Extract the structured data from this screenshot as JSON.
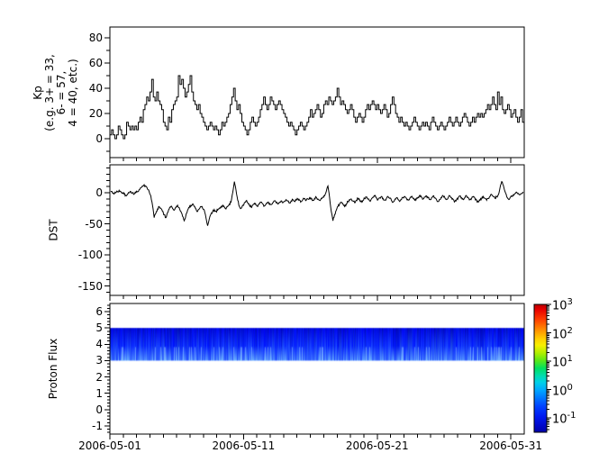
{
  "figure": {
    "background_color": "#ffffff",
    "line_color": "#000000",
    "title": ""
  },
  "x_axis": {
    "start_date": "2006-05-01",
    "end_date": "2006-06-01",
    "span_days": 31,
    "tick_days": [
      0,
      10,
      20,
      30
    ],
    "tick_labels": [
      "2006-05-01",
      "2006-05-11",
      "2006-05-21",
      "2006-05-31"
    ],
    "minor_tick_interval_days": 1
  },
  "panels": {
    "kp": {
      "ylabel_lines": [
        "Kp",
        "(e.g. 3+ = 33,",
        "6- = 57,",
        "4 = 40, etc.)"
      ],
      "yticks": [
        0,
        20,
        40,
        60,
        80
      ],
      "yminor_ticks": [
        -10,
        10,
        30,
        50,
        70
      ],
      "yrange": [
        -15,
        88.5
      ]
    },
    "dst": {
      "ylabel": "DST",
      "yticks": [
        0,
        -50,
        -100,
        -150
      ],
      "yminor_interval": 10,
      "yrange": [
        -165,
        45
      ]
    },
    "proton": {
      "ylabel": "Proton Flux",
      "yticks": [
        6,
        5,
        4,
        3,
        2,
        1,
        0,
        -1
      ],
      "yminor_interval": 0.2,
      "yrange": [
        -1.5,
        6.5
      ],
      "band": {
        "y_from": 3,
        "y_to": 5
      }
    }
  },
  "colorbar": {
    "scale": "log",
    "colormap": "jet",
    "top_exponent": 3,
    "decades_shown": 4.5,
    "tick_exponents": [
      3,
      2,
      1,
      0,
      -1
    ],
    "tick_labels_display": [
      "10^3",
      "10^2",
      "10^1",
      "10^0",
      "10^-1"
    ],
    "label_base": "10"
  },
  "chart_data": [
    {
      "type": "line",
      "name": "Kp index",
      "step": true,
      "ylabel": "Kp (e.g. 3+ = 33, 6- = 57, 4 = 40, etc.)",
      "x_start": "2006-05-01",
      "x_interval_hours": 3,
      "ylim": [
        -15,
        88.5
      ],
      "yticks": [
        0,
        20,
        40,
        60,
        80
      ],
      "xticks": [
        "2006-05-01",
        "2006-05-11",
        "2006-05-21",
        "2006-05-31"
      ],
      "values": [
        3,
        7,
        3,
        0,
        3,
        10,
        7,
        3,
        0,
        3,
        13,
        10,
        7,
        10,
        7,
        10,
        7,
        13,
        17,
        13,
        23,
        27,
        33,
        30,
        37,
        47,
        33,
        30,
        37,
        30,
        27,
        23,
        13,
        10,
        7,
        17,
        13,
        23,
        27,
        30,
        33,
        50,
        43,
        47,
        40,
        33,
        37,
        43,
        50,
        37,
        30,
        27,
        23,
        27,
        20,
        17,
        13,
        10,
        7,
        10,
        13,
        10,
        7,
        10,
        7,
        3,
        7,
        13,
        10,
        13,
        17,
        20,
        27,
        33,
        40,
        30,
        23,
        27,
        20,
        13,
        10,
        7,
        3,
        7,
        13,
        17,
        13,
        10,
        13,
        17,
        23,
        27,
        33,
        27,
        23,
        27,
        33,
        30,
        27,
        23,
        27,
        30,
        27,
        23,
        20,
        17,
        13,
        10,
        13,
        10,
        7,
        3,
        7,
        10,
        13,
        10,
        7,
        10,
        13,
        17,
        23,
        17,
        20,
        23,
        27,
        23,
        17,
        20,
        27,
        30,
        27,
        33,
        30,
        27,
        30,
        33,
        40,
        33,
        27,
        30,
        27,
        23,
        20,
        23,
        27,
        23,
        17,
        13,
        17,
        20,
        17,
        13,
        17,
        23,
        27,
        23,
        27,
        30,
        27,
        23,
        27,
        23,
        20,
        23,
        27,
        23,
        17,
        20,
        27,
        33,
        27,
        20,
        17,
        13,
        17,
        13,
        10,
        13,
        10,
        7,
        10,
        13,
        17,
        13,
        10,
        7,
        10,
        13,
        10,
        13,
        10,
        7,
        13,
        17,
        13,
        10,
        7,
        10,
        13,
        10,
        7,
        10,
        13,
        17,
        13,
        10,
        13,
        17,
        13,
        10,
        13,
        17,
        20,
        17,
        13,
        10,
        13,
        17,
        13,
        17,
        20,
        17,
        20,
        17,
        20,
        23,
        27,
        23,
        27,
        33,
        27,
        23,
        37,
        27,
        33,
        23,
        20,
        23,
        27,
        23,
        17,
        20,
        23,
        17,
        13,
        17,
        23,
        13
      ]
    },
    {
      "type": "line",
      "name": "DST",
      "step": false,
      "ylabel": "DST",
      "x_start": "2006-05-01",
      "x_interval_hours": 3,
      "ylim": [
        -165,
        45
      ],
      "yticks": [
        0,
        -50,
        -100,
        -150
      ],
      "xticks": [
        "2006-05-01",
        "2006-05-11",
        "2006-05-21",
        "2006-05-31"
      ],
      "values": [
        2,
        0,
        -2,
        0,
        2,
        4,
        2,
        0,
        -2,
        -4,
        -2,
        0,
        2,
        0,
        -2,
        0,
        2,
        5,
        8,
        11,
        13,
        10,
        6,
        2,
        -5,
        -20,
        -40,
        -33,
        -26,
        -22,
        -25,
        -30,
        -35,
        -40,
        -32,
        -26,
        -22,
        -25,
        -28,
        -24,
        -20,
        -24,
        -30,
        -38,
        -45,
        -36,
        -28,
        -24,
        -20,
        -18,
        -22,
        -26,
        -30,
        -26,
        -22,
        -25,
        -28,
        -40,
        -53,
        -42,
        -34,
        -30,
        -27,
        -30,
        -28,
        -25,
        -22,
        -20,
        -23,
        -26,
        -22,
        -18,
        -15,
        0,
        18,
        4,
        -12,
        -22,
        -25,
        -20,
        -16,
        -13,
        -16,
        -20,
        -23,
        -20,
        -17,
        -20,
        -22,
        -18,
        -15,
        -18,
        -21,
        -18,
        -15,
        -17,
        -19,
        -16,
        -13,
        -16,
        -18,
        -15,
        -13,
        -16,
        -14,
        -11,
        -13,
        -16,
        -13,
        -11,
        -14,
        -12,
        -10,
        -12,
        -14,
        -11,
        -9,
        -12,
        -10,
        -8,
        -10,
        -12,
        -9,
        -7,
        -10,
        -12,
        -9,
        -7,
        -5,
        2,
        11,
        -8,
        -30,
        -45,
        -35,
        -28,
        -22,
        -18,
        -15,
        -18,
        -22,
        -18,
        -14,
        -12,
        -10,
        -13,
        -16,
        -12,
        -9,
        -12,
        -15,
        -12,
        -9,
        -7,
        -10,
        -13,
        -10,
        -7,
        -5,
        -8,
        -11,
        -8,
        -6,
        -9,
        -12,
        -9,
        -6,
        -9,
        -12,
        -15,
        -11,
        -8,
        -11,
        -14,
        -11,
        -8,
        -6,
        -9,
        -12,
        -9,
        -6,
        -9,
        -12,
        -9,
        -7,
        -4,
        -7,
        -10,
        -7,
        -5,
        -8,
        -11,
        -8,
        -5,
        -8,
        -11,
        -14,
        -11,
        -8,
        -5,
        -8,
        -11,
        -8,
        -5,
        -8,
        -11,
        -14,
        -11,
        -8,
        -5,
        -8,
        -11,
        -8,
        -5,
        -8,
        -11,
        -9,
        -6,
        -9,
        -12,
        -15,
        -12,
        -9,
        -6,
        -9,
        -12,
        -9,
        -6,
        -3,
        -6,
        -9,
        -6,
        -3,
        8,
        18,
        12,
        2,
        -6,
        -10,
        -8,
        -6,
        -3,
        -1,
        1,
        -1,
        -3,
        -1,
        1
      ]
    },
    {
      "type": "heatmap",
      "name": "Proton Flux spectrogram",
      "ylabel": "Proton Flux",
      "ylim": [
        -1.5,
        6.5
      ],
      "yticks": [
        -1,
        0,
        1,
        2,
        3,
        4,
        5,
        6
      ],
      "band_y_extent": [
        3,
        5
      ],
      "colormap": "jet",
      "color_scale": "log",
      "color_range": [
        0.03,
        1000
      ],
      "color_ticks": [
        "10^3",
        "10^2",
        "10^1",
        "10^0",
        "10^-1"
      ],
      "values_summary": "continuous low-flux band between y=3 and y=5 for the whole month, values ~0.05-0.5 (blue shades) with vertical striations, brighter blue streaks near y=3"
    }
  ]
}
